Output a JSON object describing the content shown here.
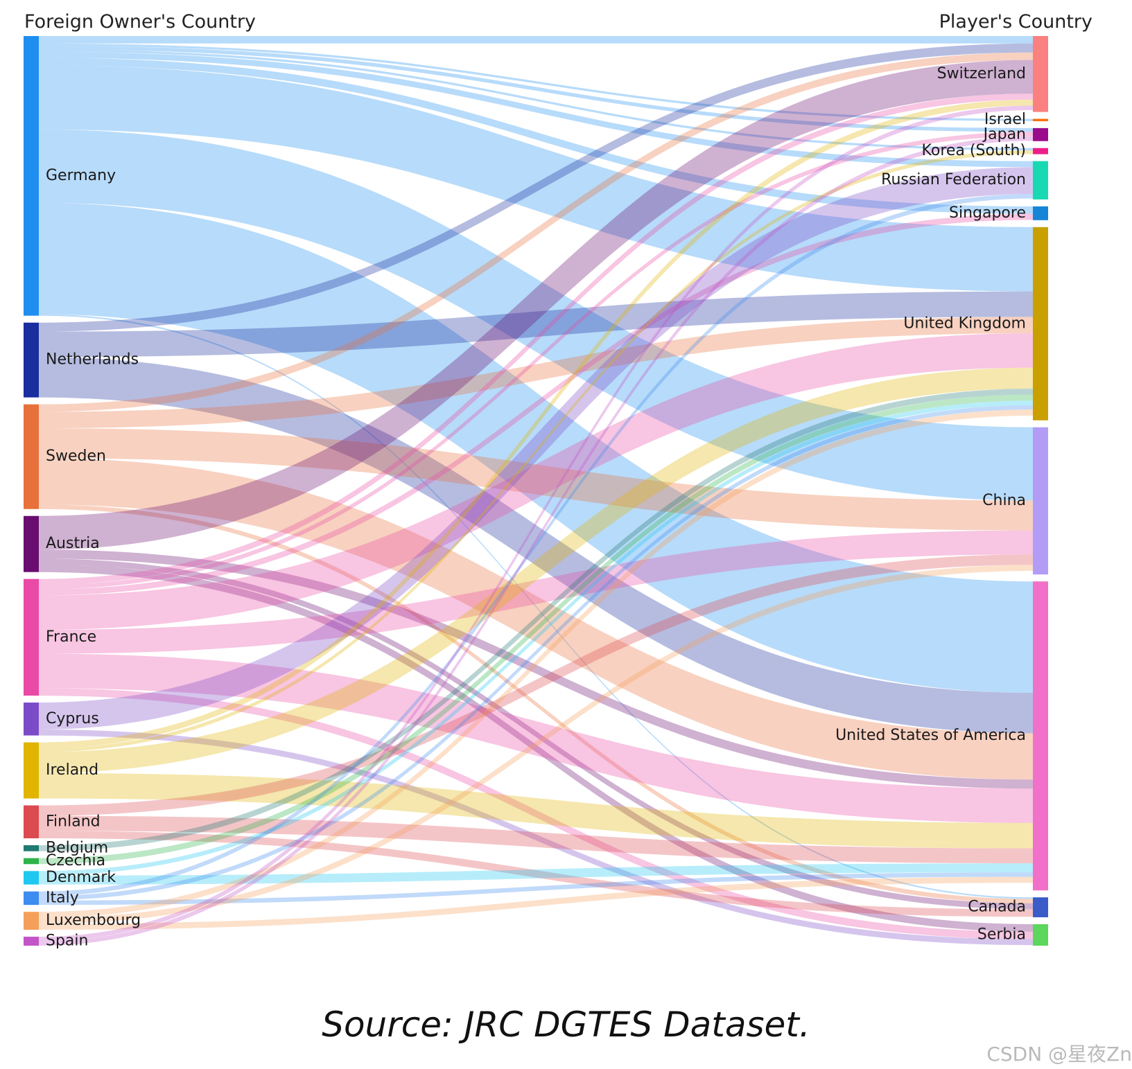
{
  "chart_data": {
    "type": "sankey",
    "left_header": "Foreign Owner's Country",
    "right_header": "Player's Country",
    "source_nodes": [
      {
        "name": "Germany",
        "color": "#1f8ef1"
      },
      {
        "name": "Netherlands",
        "color": "#1a2ea0"
      },
      {
        "name": "Sweden",
        "color": "#e8703a"
      },
      {
        "name": "Austria",
        "color": "#6a0d70"
      },
      {
        "name": "France",
        "color": "#e84aa6"
      },
      {
        "name": "Cyprus",
        "color": "#7b4bc8"
      },
      {
        "name": "Ireland",
        "color": "#e0b400"
      },
      {
        "name": "Finland",
        "color": "#dc4b50"
      },
      {
        "name": "Belgium",
        "color": "#1f7a73"
      },
      {
        "name": "Czechia",
        "color": "#2db34a"
      },
      {
        "name": "Denmark",
        "color": "#1ec8f0"
      },
      {
        "name": "Italy",
        "color": "#3d8cf0"
      },
      {
        "name": "Luxembourg",
        "color": "#f5a05a"
      },
      {
        "name": "Spain",
        "color": "#c455c8"
      }
    ],
    "target_nodes": [
      {
        "name": "Switzerland",
        "color": "#fb8080"
      },
      {
        "name": "Israel",
        "color": "#ff6a00"
      },
      {
        "name": "Japan",
        "color": "#9b0c8c"
      },
      {
        "name": "Korea (South)",
        "color": "#ec1f8a"
      },
      {
        "name": "Russian Federation",
        "color": "#19d9b3"
      },
      {
        "name": "Singapore",
        "color": "#1685d8"
      },
      {
        "name": "United Kingdom",
        "color": "#c9a000"
      },
      {
        "name": "China",
        "color": "#b39cf5"
      },
      {
        "name": "United States of America",
        "color": "#f170c9"
      },
      {
        "name": "Canada",
        "color": "#3a5cc8"
      },
      {
        "name": "Serbia",
        "color": "#5cd65c"
      }
    ],
    "flows": [
      {
        "source": "Germany",
        "target": "Switzerland",
        "value": 10
      },
      {
        "source": "Germany",
        "target": "Israel",
        "value": 3
      },
      {
        "source": "Germany",
        "target": "Japan",
        "value": 5
      },
      {
        "source": "Germany",
        "target": "Korea (South)",
        "value": 3
      },
      {
        "source": "Germany",
        "target": "Russian Federation",
        "value": 8
      },
      {
        "source": "Germany",
        "target": "Singapore",
        "value": 10
      },
      {
        "source": "Germany",
        "target": "United Kingdom",
        "value": 86
      },
      {
        "source": "Germany",
        "target": "China",
        "value": 98
      },
      {
        "source": "Germany",
        "target": "United States of America",
        "value": 149
      },
      {
        "source": "Germany",
        "target": "Canada",
        "value": 2
      },
      {
        "source": "Netherlands",
        "target": "Switzerland",
        "value": 12
      },
      {
        "source": "Netherlands",
        "target": "United Kingdom",
        "value": 34
      },
      {
        "source": "Netherlands",
        "target": "United States of America",
        "value": 54
      },
      {
        "source": "Sweden",
        "target": "Switzerland",
        "value": 10
      },
      {
        "source": "Sweden",
        "target": "United Kingdom",
        "value": 22
      },
      {
        "source": "Sweden",
        "target": "China",
        "value": 40
      },
      {
        "source": "Sweden",
        "target": "United States of America",
        "value": 62
      },
      {
        "source": "Sweden",
        "target": "Canada",
        "value": 6
      },
      {
        "source": "Austria",
        "target": "Switzerland",
        "value": 45
      },
      {
        "source": "Austria",
        "target": "United States of America",
        "value": 12
      },
      {
        "source": "Austria",
        "target": "Canada",
        "value": 8
      },
      {
        "source": "Austria",
        "target": "Serbia",
        "value": 10
      },
      {
        "source": "France",
        "target": "Switzerland",
        "value": 8
      },
      {
        "source": "France",
        "target": "Japan",
        "value": 6
      },
      {
        "source": "France",
        "target": "Singapore",
        "value": 8
      },
      {
        "source": "France",
        "target": "United Kingdom",
        "value": 46
      },
      {
        "source": "France",
        "target": "China",
        "value": 32
      },
      {
        "source": "France",
        "target": "United States of America",
        "value": 46
      },
      {
        "source": "France",
        "target": "Serbia",
        "value": 10
      },
      {
        "source": "Cyprus",
        "target": "Russian Federation",
        "value": 36
      },
      {
        "source": "Cyprus",
        "target": "Serbia",
        "value": 8
      },
      {
        "source": "Ireland",
        "target": "Switzerland",
        "value": 8
      },
      {
        "source": "Ireland",
        "target": "Korea (South)",
        "value": 5
      },
      {
        "source": "Ireland",
        "target": "United Kingdom",
        "value": 28
      },
      {
        "source": "Ireland",
        "target": "United States of America",
        "value": 34
      },
      {
        "source": "Finland",
        "target": "China",
        "value": 14
      },
      {
        "source": "Finland",
        "target": "United States of America",
        "value": 20
      },
      {
        "source": "Finland",
        "target": "Canada",
        "value": 10
      },
      {
        "source": "Belgium",
        "target": "United Kingdom",
        "value": 8
      },
      {
        "source": "Czechia",
        "target": "United Kingdom",
        "value": 8
      },
      {
        "source": "Denmark",
        "target": "United Kingdom",
        "value": 6
      },
      {
        "source": "Denmark",
        "target": "United States of America",
        "value": 12
      },
      {
        "source": "Italy",
        "target": "Russian Federation",
        "value": 6
      },
      {
        "source": "Italy",
        "target": "United Kingdom",
        "value": 6
      },
      {
        "source": "Italy",
        "target": "United States of America",
        "value": 6
      },
      {
        "source": "Luxembourg",
        "target": "United Kingdom",
        "value": 8
      },
      {
        "source": "Luxembourg",
        "target": "China",
        "value": 8
      },
      {
        "source": "Luxembourg",
        "target": "United States of America",
        "value": 8
      },
      {
        "source": "Spain",
        "target": "Switzerland",
        "value": 6
      },
      {
        "source": "Spain",
        "target": "Japan",
        "value": 6
      }
    ]
  },
  "footer": {
    "source": "Source: JRC DGTES Dataset.",
    "watermark": "CSDN @星夜Zn"
  }
}
